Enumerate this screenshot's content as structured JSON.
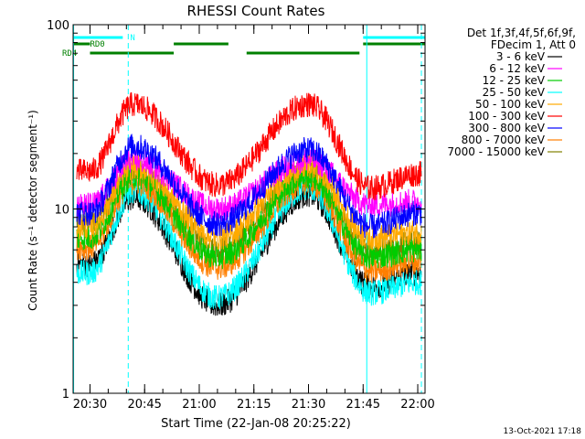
{
  "chart_data": {
    "type": "line",
    "title": "RHESSI Count Rates",
    "xlabel": "Start Time (22-Jan-08 20:25:22)",
    "ylabel": "Count Rate (s⁻¹ detector segment⁻¹)",
    "y_scale": "log",
    "ylim": [
      1,
      100
    ],
    "xlim": [
      "20:25:22",
      "22:02:00"
    ],
    "x_ticks": [
      "20:30",
      "20:45",
      "21:00",
      "21:15",
      "21:30",
      "21:45",
      "22:00"
    ],
    "y_ticks": [
      "1",
      "10",
      "100"
    ],
    "grid": false,
    "legend_position": "right",
    "legend_header": [
      "Det 1f,3f,4f,5f,6f,9f,",
      "FDecim 1, Att 0"
    ],
    "series": [
      {
        "name": "3 - 6 keV",
        "color": "#000000",
        "values_at_ticks": {
          "20:30": 5.0,
          "20:42": 11.5,
          "21:05": 3.0,
          "21:30": 12.0,
          "21:47": 3.8,
          "22:00": 4.5
        }
      },
      {
        "name": "6 - 12 keV",
        "color": "#ff00ff",
        "values_at_ticks": {
          "20:30": 10.5,
          "20:42": 18.5,
          "21:05": 10.0,
          "21:30": 18.5,
          "21:47": 10.5,
          "22:00": 11.0
        }
      },
      {
        "name": "12 - 25 keV",
        "color": "#00cc00",
        "values_at_ticks": {
          "20:30": 7.0,
          "20:42": 15.0,
          "21:05": 5.5,
          "21:30": 15.0,
          "21:47": 5.5,
          "22:00": 6.0
        }
      },
      {
        "name": "25 - 50 keV",
        "color": "#00ffff",
        "values_at_ticks": {
          "20:30": 4.5,
          "20:42": 12.5,
          "21:05": 3.3,
          "21:30": 13.0,
          "21:47": 3.5,
          "22:00": 4.0
        }
      },
      {
        "name": "50 - 100 keV",
        "color": "#ffaa00",
        "values_at_ticks": {
          "20:30": 8.0,
          "20:42": 17.0,
          "21:05": 7.0,
          "21:30": 17.0,
          "21:47": 7.0,
          "22:00": 7.5
        }
      },
      {
        "name": "100 - 300 keV",
        "color": "#ff0000",
        "values_at_ticks": {
          "20:30": 16.0,
          "20:42": 37.0,
          "21:05": 13.5,
          "21:30": 37.0,
          "21:47": 13.0,
          "22:00": 15.5
        }
      },
      {
        "name": "300 - 800 keV",
        "color": "#0000ff",
        "values_at_ticks": {
          "20:30": 9.5,
          "20:42": 22.0,
          "21:05": 8.3,
          "21:30": 21.0,
          "21:47": 8.0,
          "22:00": 9.5
        }
      },
      {
        "name": "800 - 7000 keV",
        "color": "#ff7f00",
        "values_at_ticks": {
          "20:30": 6.2,
          "20:42": 14.0,
          "21:05": 4.8,
          "21:30": 14.0,
          "21:47": 4.6,
          "22:00": 5.2
        }
      },
      {
        "name": "7000 - 15000 keV",
        "color": "#808000",
        "values_at_ticks": {
          "20:30": 8.5,
          "20:42": 16.0,
          "21:05": 6.0,
          "21:30": 16.0,
          "21:47": 6.0,
          "22:00": 6.5
        }
      }
    ],
    "flags": [
      {
        "label": "N",
        "color": "#00ffff",
        "segments": [
          [
            "20:25:22",
            "20:39"
          ],
          [
            "21:45",
            "22:02"
          ]
        ]
      },
      {
        "label": "RD0",
        "color": "#008000",
        "segments": [
          [
            "20:25:22",
            "20:30"
          ],
          [
            "20:53",
            "21:08"
          ],
          [
            "21:45",
            "22:02"
          ]
        ]
      },
      {
        "label": "RD4",
        "color": "#008000",
        "segments": [
          [
            "20:30",
            "20:53"
          ],
          [
            "21:13",
            "21:44"
          ]
        ]
      }
    ],
    "vertical_markers": [
      {
        "time": "20:25:30",
        "style": "solid",
        "color": "#00ffff"
      },
      {
        "time": "20:40:30",
        "style": "dashed",
        "color": "#00ffff"
      },
      {
        "time": "21:46:00",
        "style": "solid",
        "color": "#00ffff"
      },
      {
        "time": "22:01:00",
        "style": "dashed",
        "color": "#00ffff"
      }
    ]
  },
  "footer_timestamp": "13-Oct-2021 17:18"
}
